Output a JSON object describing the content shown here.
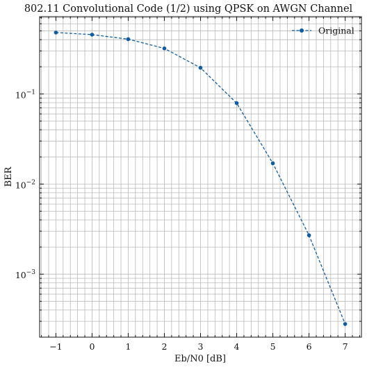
{
  "chart_data": {
    "type": "line",
    "title": "802.11 Convolutional Code (1/2) using QPSK on AWGN Channel",
    "xlabel": "Eb/N0 [dB]",
    "ylabel": "BER",
    "xlim": [
      -1.45,
      7.45
    ],
    "ylim": [
      0.0002,
      0.72
    ],
    "yscale": "log",
    "grid": true,
    "legend_position": "top-right",
    "x_ticks": [
      "−1",
      "0",
      "1",
      "2",
      "3",
      "4",
      "5",
      "6",
      "7"
    ],
    "y_ticks": [
      {
        "base": "10",
        "exp": "−1"
      },
      {
        "base": "10",
        "exp": "−2"
      },
      {
        "base": "10",
        "exp": "−3"
      }
    ],
    "series": [
      {
        "name": "Original",
        "color": "#0c5da5",
        "marker": "circle",
        "line_style": "dashed",
        "x": [
          -1,
          0,
          1,
          2,
          3,
          4,
          5,
          6,
          7
        ],
        "y": [
          0.48,
          0.455,
          0.405,
          0.32,
          0.195,
          0.079,
          0.017,
          0.0027,
          0.00028
        ]
      }
    ]
  }
}
